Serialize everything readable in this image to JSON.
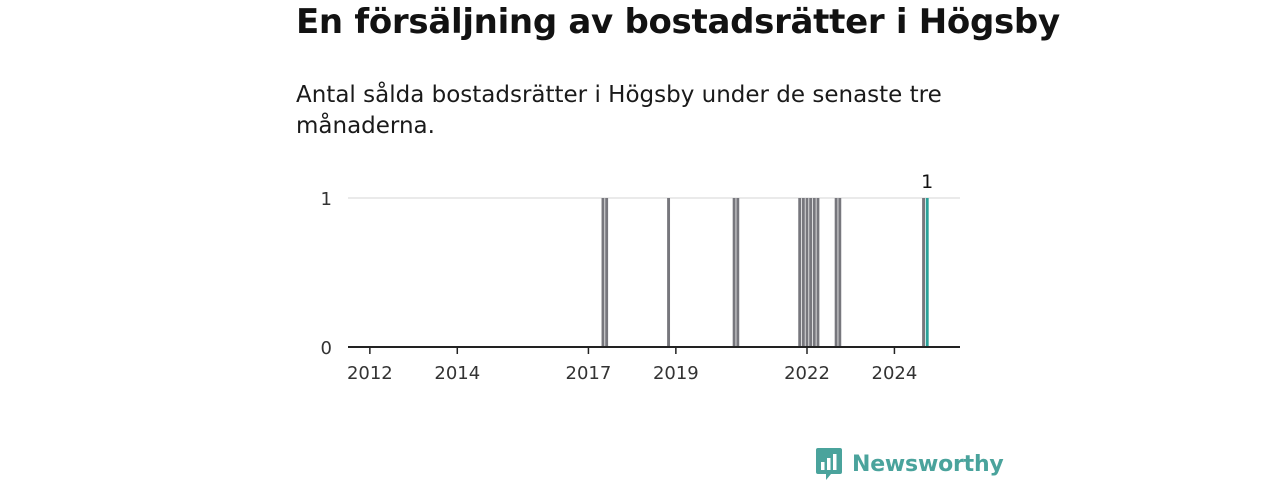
{
  "header": {
    "title": "En försäljning av bostadsrätter i Högsby",
    "subtitle": "Antal sålda bostadsrätter i Högsby under de senaste tre månaderna."
  },
  "brand": {
    "name": "Newsworthy",
    "icon": "newsworthy-logo-icon",
    "color": "#4aa39c"
  },
  "chart_data": {
    "type": "bar",
    "title": "",
    "xlabel": "",
    "ylabel": "",
    "x_unit": "month",
    "xlim": [
      "2011-07",
      "2025-07"
    ],
    "ylim": [
      0,
      1
    ],
    "yticks": [
      "0",
      "1"
    ],
    "xticks": [
      "2012",
      "2014",
      "2017",
      "2019",
      "2022",
      "2024"
    ],
    "grid": true,
    "legend": "none",
    "bar_color": "#77777d",
    "highlight_color": "#2aa198",
    "series": [
      {
        "name": "",
        "months": [
          "2017-05",
          "2017-06",
          "2018-11",
          "2020-05",
          "2020-06",
          "2021-11",
          "2021-12",
          "2022-01",
          "2022-02",
          "2022-03",
          "2022-04",
          "2022-09",
          "2022-10",
          "2024-09",
          "2024-10"
        ],
        "values": [
          1,
          1,
          1,
          1,
          1,
          1,
          1,
          1,
          1,
          1,
          1,
          1,
          1,
          1,
          1
        ]
      }
    ],
    "highlight": {
      "month": "2024-10",
      "label": "1"
    }
  }
}
